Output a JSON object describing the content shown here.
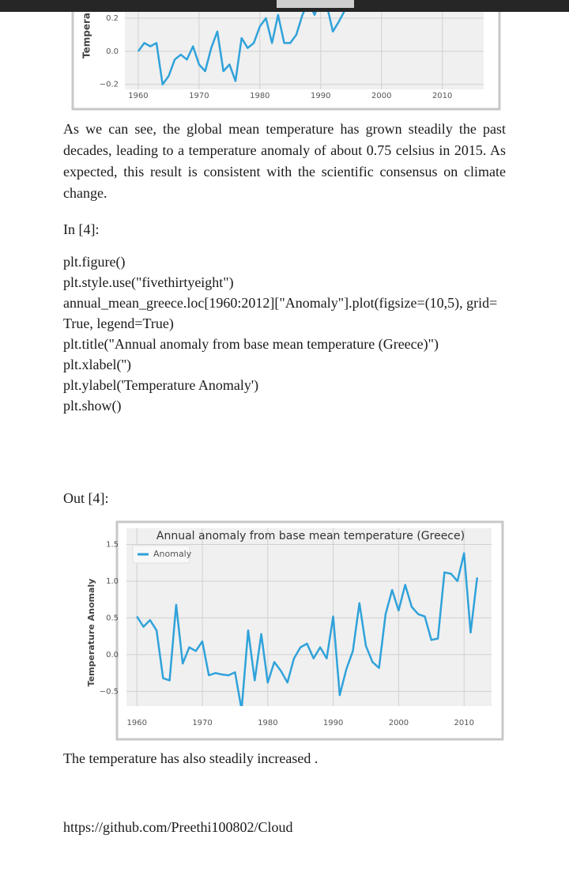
{
  "top_chart": {
    "type": "line",
    "ylabel": "Tempera",
    "color": "#30a2da",
    "grid": true,
    "x": [
      1960,
      1961,
      1962,
      1963,
      1964,
      1965,
      1966,
      1967,
      1968,
      1969,
      1970,
      1971,
      1972,
      1973,
      1974,
      1975,
      1976,
      1977,
      1978,
      1979,
      1980,
      1981,
      1982,
      1983,
      1984,
      1985,
      1986,
      1987,
      1988,
      1989,
      1990,
      1991,
      1992,
      1993,
      1994
    ],
    "values": [
      0.0,
      0.05,
      0.03,
      0.05,
      -0.2,
      -0.15,
      -0.05,
      -0.02,
      -0.05,
      0.03,
      -0.08,
      -0.12,
      0.02,
      0.12,
      -0.12,
      -0.08,
      -0.18,
      0.08,
      0.02,
      0.05,
      0.15,
      0.2,
      0.05,
      0.22,
      0.05,
      0.05,
      0.1,
      0.22,
      0.3,
      0.22,
      0.32,
      0.28,
      0.12,
      0.18,
      0.25
    ],
    "xlim": [
      1957.8,
      2016.8
    ],
    "ylim": [
      -0.23,
      0.31
    ],
    "xticks": [
      1960,
      1970,
      1980,
      1990,
      2000,
      2010
    ],
    "yticks": [
      0.2,
      {
        "value": 0,
        "label": "0.0"
      },
      {
        "value": -0.2,
        "label": "−0.2"
      }
    ]
  },
  "paragraph": "As we can see, the global mean temperature has grown steadily the past decades, leading to a temperature anomaly of about 0.75 celsius in 2015. As expected, this result is consistent with the scientific consensus on climate change.",
  "in_prompt": "In [4]:",
  "code": [
    "plt.figure()",
    "plt.style.use(\"fivethirtyeight\")",
    "annual_mean_greece.loc[1960:2012][\"Anomaly\"].plot(figsize=(10,5), grid=True, legend=True)",
    "plt.title(\"Annual anomaly from base mean temperature (Greece)\")",
    "plt.xlabel('')",
    "plt.ylabel('Temperature Anomaly')",
    "plt.show()"
  ],
  "out_prompt": "Out [4]:",
  "chart": {
    "type": "line",
    "title": "Annual anomaly from base mean temperature (Greece)",
    "ylabel": "Temperature Anomaly",
    "grid": true,
    "legend": "upper left",
    "x": [
      1960,
      1961,
      1962,
      1963,
      1964,
      1965,
      1966,
      1967,
      1968,
      1969,
      1970,
      1971,
      1972,
      1973,
      1974,
      1975,
      1976,
      1977,
      1978,
      1979,
      1980,
      1981,
      1982,
      1983,
      1984,
      1985,
      1986,
      1987,
      1988,
      1989,
      1990,
      1991,
      1992,
      1993,
      1994,
      1995,
      1996,
      1997,
      1998,
      1999,
      2000,
      2001,
      2002,
      2003,
      2004,
      2005,
      2006,
      2007,
      2008,
      2009,
      2010,
      2011,
      2012
    ],
    "series": [
      {
        "name": "Anomaly",
        "color": "#30a2da",
        "values": [
          0.52,
          0.38,
          0.47,
          0.33,
          -0.32,
          -0.35,
          0.68,
          -0.12,
          0.1,
          0.05,
          0.18,
          -0.28,
          -0.25,
          -0.27,
          -0.28,
          -0.24,
          -0.75,
          0.33,
          -0.35,
          0.28,
          -0.38,
          -0.1,
          -0.22,
          -0.38,
          -0.05,
          0.1,
          0.15,
          -0.05,
          0.1,
          -0.05,
          0.52,
          -0.55,
          -0.2,
          0.05,
          0.7,
          0.12,
          -0.1,
          -0.18,
          0.55,
          0.88,
          0.6,
          0.95,
          0.65,
          0.55,
          0.52,
          0.2,
          0.22,
          1.12,
          1.1,
          1.0,
          1.38,
          0.3,
          1.05
        ]
      }
    ],
    "xlim": [
      1958.4,
      2014.2
    ],
    "ylim": [
      -0.7,
      1.72
    ],
    "xticks": [
      1960,
      1970,
      1980,
      1990,
      2000,
      2010
    ],
    "yticks": [
      {
        "value": -0.5,
        "label": "−0.5"
      },
      {
        "value": 0,
        "label": "0.0"
      },
      0.5,
      {
        "value": 1,
        "label": "1.0"
      },
      1.5
    ]
  },
  "conclusion": "The temperature has also steadily increased .",
  "link": "https://github.com/Preethi100802/Cloud"
}
